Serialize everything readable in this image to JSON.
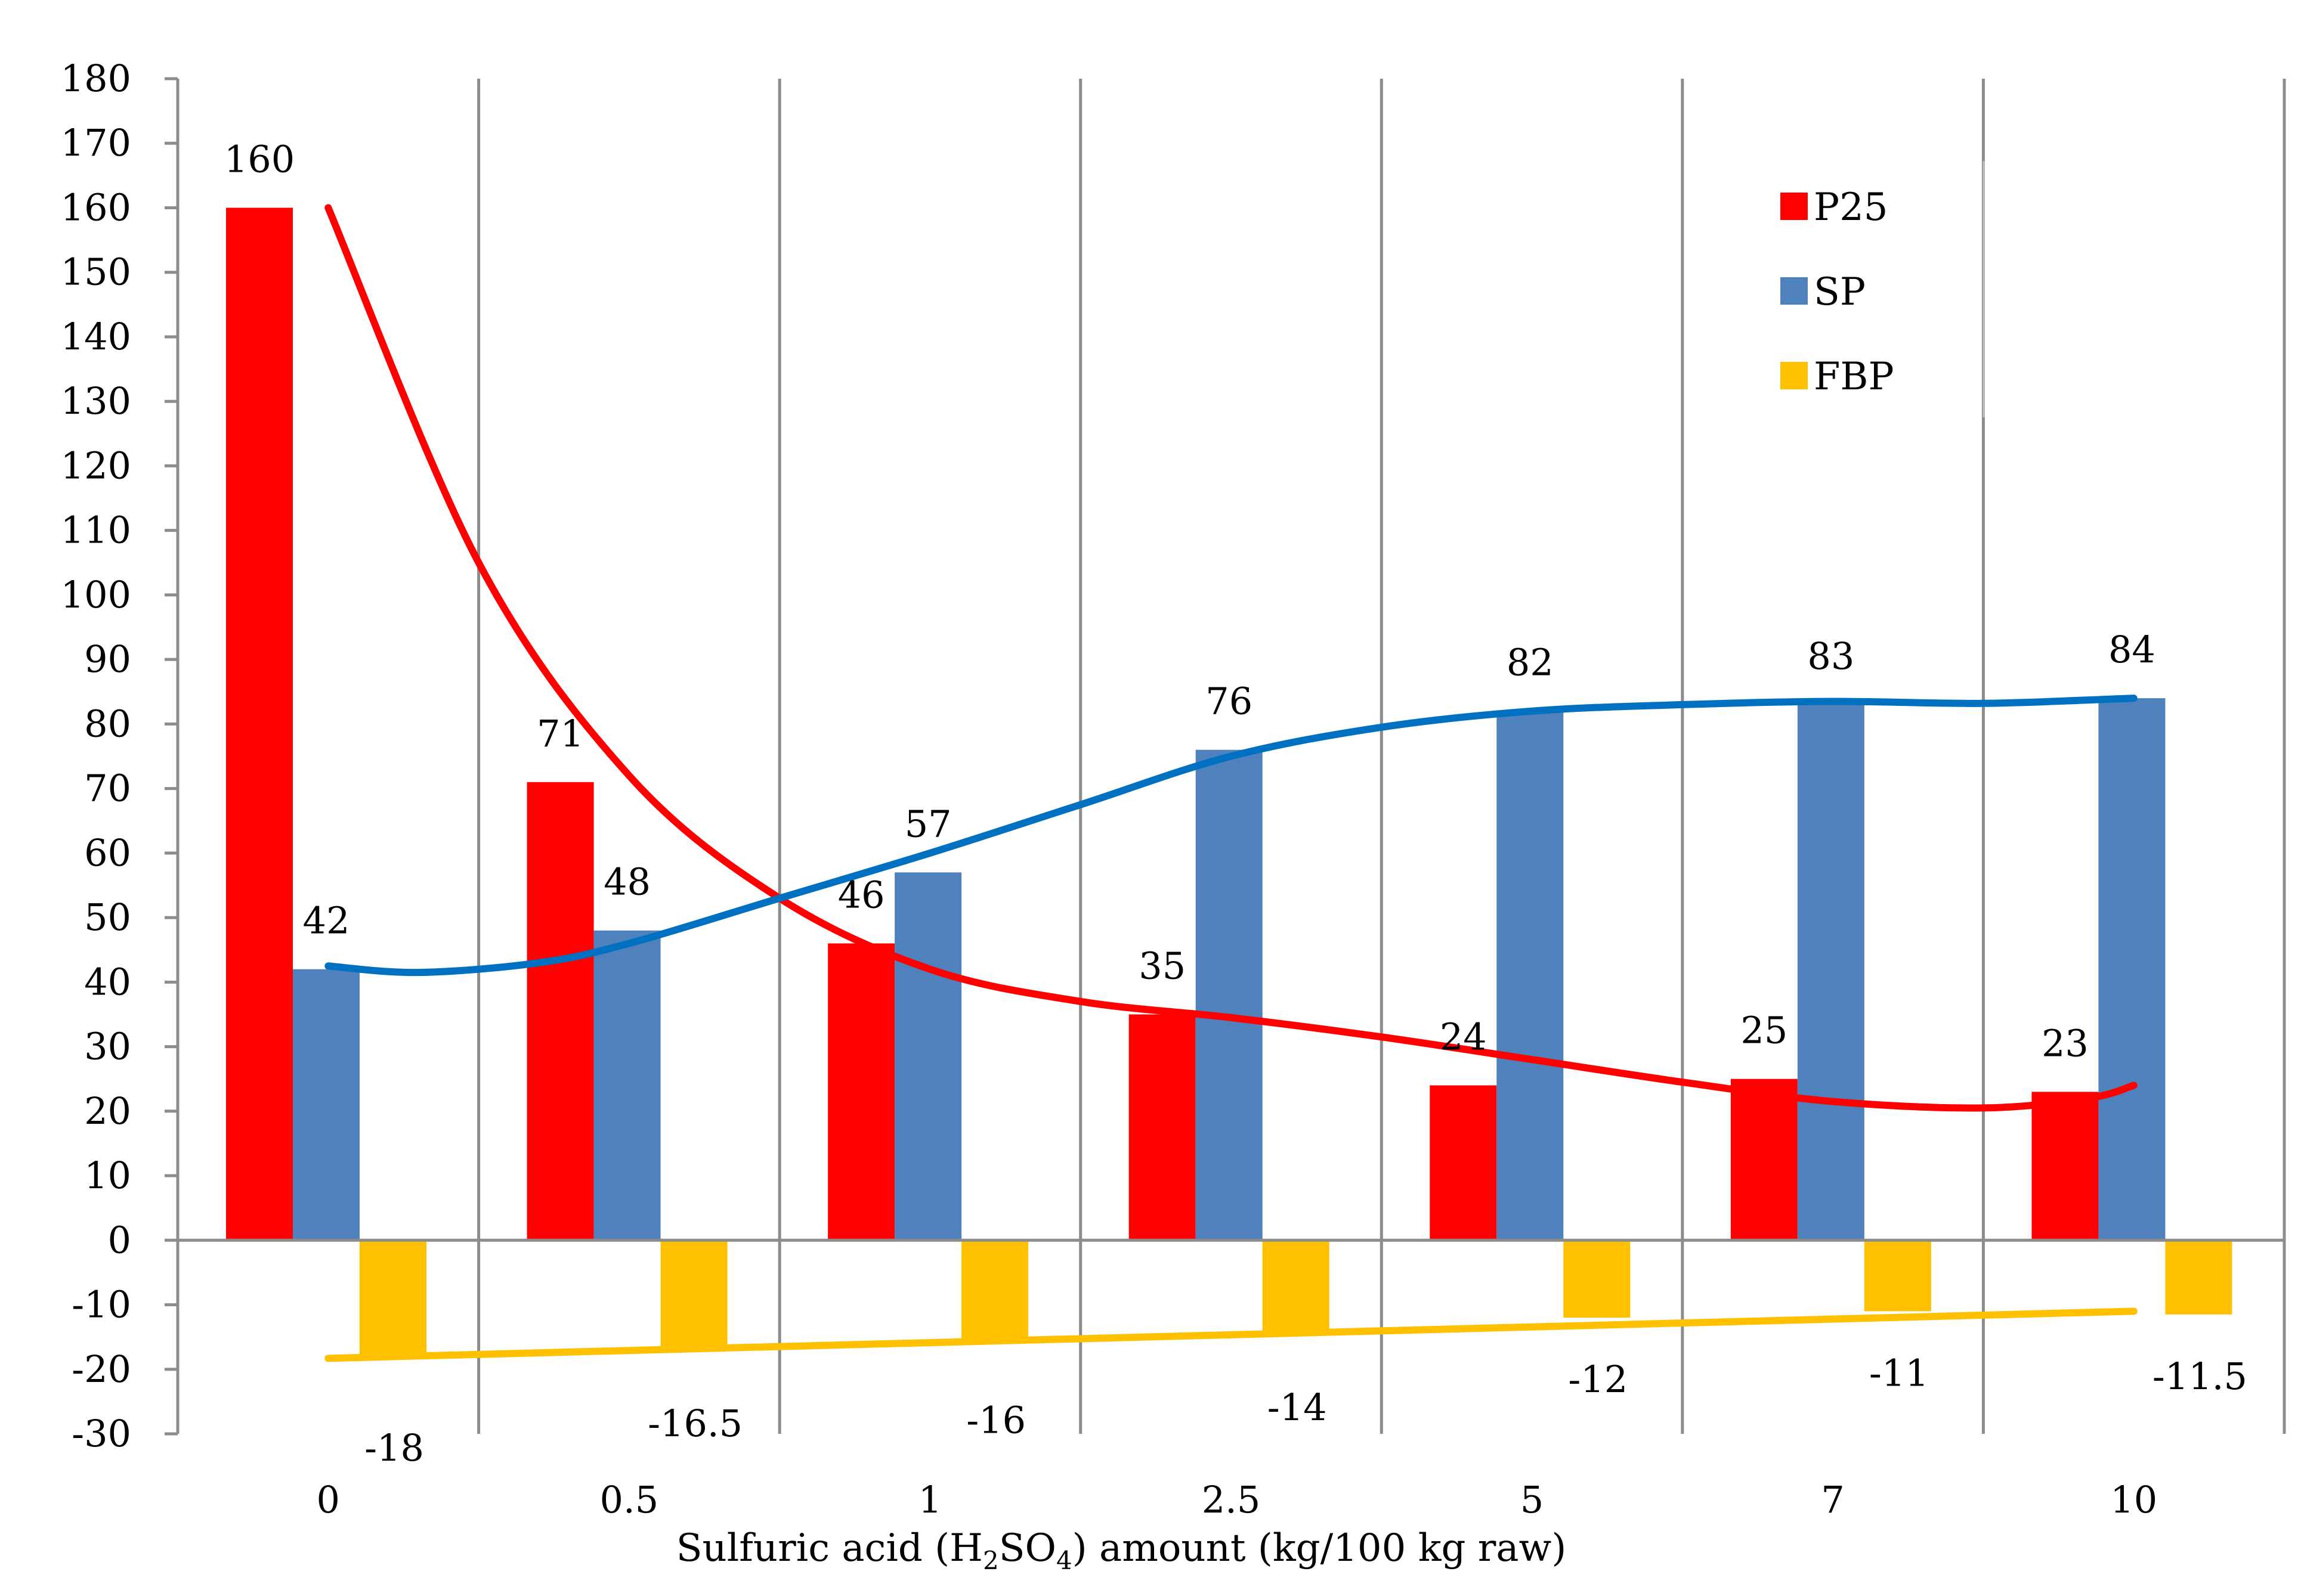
{
  "chart_data": {
    "type": "bar",
    "title": "",
    "xlabel_parts": [
      "Sulfuric acid (H",
      "2",
      "SO",
      "4",
      ") amount (kg/100 kg raw)"
    ],
    "ylabel": "",
    "ylim": [
      -30,
      180
    ],
    "yticks": [
      -30,
      -20,
      -10,
      0,
      10,
      20,
      30,
      40,
      50,
      60,
      70,
      80,
      90,
      100,
      110,
      120,
      130,
      140,
      150,
      160,
      170,
      180
    ],
    "categories": [
      "0",
      "0.5",
      "1",
      "2.5",
      "5",
      "7",
      "10"
    ],
    "grid": "vertical",
    "legend_position": "top-right",
    "series": [
      {
        "name": "P25",
        "color": "#ff0000",
        "values": [
          160,
          71,
          46,
          35,
          24,
          25,
          23
        ],
        "labels": [
          "160",
          "71",
          "46",
          "35",
          "24",
          "25",
          "23"
        ]
      },
      {
        "name": "SP",
        "color": "#4f81bd",
        "values": [
          42,
          48,
          57,
          76,
          82,
          83,
          84
        ],
        "labels": [
          "42",
          "48",
          "57",
          "76",
          "82",
          "83",
          "84"
        ]
      },
      {
        "name": "FBP",
        "color": "#ffc000",
        "values": [
          -18,
          -16.5,
          -16,
          -14,
          -12,
          -11,
          -11.5
        ],
        "labels": [
          "-18",
          "-16.5",
          "-16",
          "-14",
          "-12",
          "-11",
          "-11.5"
        ]
      }
    ],
    "trendlines": [
      {
        "series": "P25",
        "color": "#ff0000",
        "points": [
          [
            0,
            160
          ],
          [
            0.5,
            105
          ],
          [
            1,
            72
          ],
          [
            1.5,
            53
          ],
          [
            2,
            42
          ],
          [
            2.5,
            37
          ],
          [
            3,
            34.5
          ],
          [
            3.5,
            31.5
          ],
          [
            4,
            28
          ],
          [
            4.5,
            24.5
          ],
          [
            5,
            21.5
          ],
          [
            5.5,
            20.5
          ],
          [
            5.85,
            22
          ],
          [
            6,
            24
          ]
        ]
      },
      {
        "series": "SP",
        "color": "#0070c0",
        "points": [
          [
            0,
            42.5
          ],
          [
            0.3,
            41.5
          ],
          [
            0.7,
            43
          ],
          [
            1,
            46
          ],
          [
            1.5,
            53
          ],
          [
            2,
            60
          ],
          [
            2.5,
            67.5
          ],
          [
            3,
            75
          ],
          [
            3.5,
            79.5
          ],
          [
            4,
            82
          ],
          [
            4.5,
            83
          ],
          [
            5,
            83.5
          ],
          [
            5.5,
            83.2
          ],
          [
            6,
            84
          ]
        ]
      },
      {
        "series": "FBP",
        "color": "#ffc000",
        "points": [
          [
            0,
            -18.3
          ],
          [
            6,
            -11
          ]
        ]
      }
    ]
  }
}
